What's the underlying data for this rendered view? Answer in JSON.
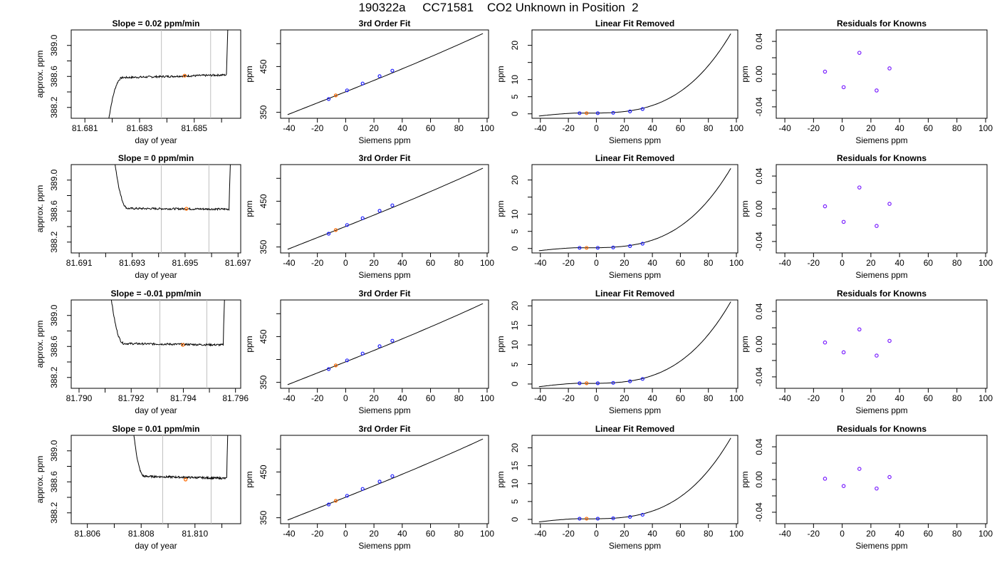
{
  "title": "190322a     CC71581    CO2 Unknown in Position  2",
  "colors": {
    "line": "#000000",
    "known": "#2020ff",
    "unknown": "#ff6a00",
    "residual": "#7a1fff",
    "vline": "#bfbfbf"
  },
  "chart_data": [
    {
      "type": "line",
      "row": 0,
      "title": "Slope =  0.02  ppm/min",
      "xlabel": "day of year",
      "ylabel": "approx. ppm",
      "xlim": [
        81.6805,
        81.6867
      ],
      "ylim": [
        388.06,
        389.2
      ],
      "xticks": [
        "81.681",
        "81.683",
        "81.685"
      ],
      "xtick_values": [
        81.681,
        81.683,
        81.685
      ],
      "yticks": [
        "388.2",
        "388.6",
        "389.0"
      ],
      "ytick_values": [
        388.2,
        388.6,
        389.0
      ],
      "vlines": [
        81.6838,
        81.6856
      ],
      "marker": {
        "x": 81.68465,
        "y": 388.61
      },
      "profile": {
        "x_start": 81.68187,
        "x_end": 81.68618,
        "base": 388.6,
        "trend": 0.04,
        "ramp_start": 388.06,
        "ramp_end": 389.25
      }
    },
    {
      "type": "line",
      "row": 1,
      "title": "Slope =  0  ppm/min",
      "xlabel": "day of year",
      "ylabel": "approx. ppm",
      "xlim": [
        81.6907,
        81.6971
      ],
      "ylim": [
        388.06,
        389.2
      ],
      "xticks": [
        "81.691",
        "81.693",
        "81.695",
        "81.697"
      ],
      "xtick_values": [
        81.691,
        81.693,
        81.695,
        81.697
      ],
      "yticks": [
        "388.2",
        "388.6",
        "389.0"
      ],
      "ytick_values": [
        388.2,
        388.6,
        389.0
      ],
      "vlines": [
        81.6941,
        81.6959
      ],
      "marker": {
        "x": 81.69505,
        "y": 388.63
      },
      "profile": {
        "x_start": 81.69234,
        "x_end": 81.69666,
        "base": 388.63,
        "trend": -0.01,
        "ramp_start": 389.25,
        "ramp_end": 389.25
      }
    },
    {
      "type": "line",
      "row": 2,
      "title": "Slope =  -0.01  ppm/min",
      "xlabel": "day of year",
      "ylabel": "approx. ppm",
      "xlim": [
        81.7897,
        81.7962
      ],
      "ylim": [
        388.06,
        389.2
      ],
      "xticks": [
        "81.790",
        "81.792",
        "81.794",
        "81.796"
      ],
      "xtick_values": [
        81.79,
        81.792,
        81.794,
        81.796
      ],
      "yticks": [
        "388.2",
        "388.6",
        "389.0"
      ],
      "ytick_values": [
        388.2,
        388.6,
        389.0
      ],
      "vlines": [
        81.7931,
        81.7949
      ],
      "marker": {
        "x": 81.79398,
        "y": 388.62
      },
      "profile": {
        "x_start": 81.79122,
        "x_end": 81.79553,
        "base": 388.63,
        "trend": -0.02,
        "ramp_start": 389.25,
        "ramp_end": 389.25
      }
    },
    {
      "type": "line",
      "row": 3,
      "title": "Slope =  0.01  ppm/min",
      "xlabel": "day of year",
      "ylabel": "approx. ppm",
      "xlim": [
        81.8054,
        81.8117
      ],
      "ylim": [
        388.06,
        389.2
      ],
      "xticks": [
        "81.806",
        "81.808",
        "81.810"
      ],
      "xtick_values": [
        81.806,
        81.808,
        81.81
      ],
      "yticks": [
        "388.2",
        "388.6",
        "389.0"
      ],
      "ytick_values": [
        388.2,
        388.6,
        389.0
      ],
      "vlines": [
        81.8088,
        81.8106
      ],
      "marker": {
        "x": 81.80965,
        "y": 388.63
      },
      "profile": {
        "x_start": 81.80771,
        "x_end": 81.81118,
        "base": 388.66,
        "trend": -0.03,
        "ramp_start": 389.25,
        "ramp_end": 389.25
      }
    },
    {
      "type": "line",
      "row": 0,
      "title": "3rd Order Fit",
      "xlabel": "Siemens ppm",
      "ylabel": "ppm",
      "xlim": [
        -46,
        101
      ],
      "ylim": [
        337,
        530
      ],
      "xticks": [
        "-40",
        "-20",
        "0",
        "20",
        "40",
        "60",
        "80",
        "100"
      ],
      "xtick_values": [
        -40,
        -20,
        0,
        20,
        40,
        60,
        80,
        100
      ],
      "yticks": [
        "350",
        "450"
      ],
      "ytick_values": [
        350,
        450
      ],
      "yminor": [
        400,
        500
      ],
      "curve": {
        "x_start": -41,
        "x_end": 97,
        "y_start": 345,
        "y_end": 522
      },
      "knowns": [
        [
          -12,
          379
        ],
        [
          1,
          398
        ],
        [
          12,
          413
        ],
        [
          24,
          429
        ],
        [
          33,
          441
        ]
      ],
      "unknowns": [
        [
          -7,
          387
        ]
      ]
    },
    {
      "type": "line",
      "row": 1,
      "title": "3rd Order Fit",
      "xlabel": "Siemens ppm",
      "ylabel": "ppm",
      "xlim": [
        -46,
        101
      ],
      "ylim": [
        337,
        530
      ],
      "xticks": [
        "-40",
        "-20",
        "0",
        "20",
        "40",
        "60",
        "80",
        "100"
      ],
      "xtick_values": [
        -40,
        -20,
        0,
        20,
        40,
        60,
        80,
        100
      ],
      "yticks": [
        "350",
        "450"
      ],
      "ytick_values": [
        350,
        450
      ],
      "yminor": [
        400,
        500
      ],
      "curve": {
        "x_start": -41,
        "x_end": 97,
        "y_start": 345,
        "y_end": 522
      },
      "knowns": [
        [
          -12,
          379
        ],
        [
          1,
          398
        ],
        [
          12,
          413
        ],
        [
          24,
          429
        ],
        [
          33,
          441
        ]
      ],
      "unknowns": [
        [
          -7,
          387
        ]
      ]
    },
    {
      "type": "line",
      "row": 2,
      "title": "3rd Order Fit",
      "xlabel": "Siemens ppm",
      "ylabel": "ppm",
      "xlim": [
        -46,
        101
      ],
      "ylim": [
        337,
        530
      ],
      "xticks": [
        "-40",
        "-20",
        "0",
        "20",
        "40",
        "60",
        "80",
        "100"
      ],
      "xtick_values": [
        -40,
        -20,
        0,
        20,
        40,
        60,
        80,
        100
      ],
      "yticks": [
        "350",
        "450"
      ],
      "ytick_values": [
        350,
        450
      ],
      "yminor": [
        400,
        500
      ],
      "curve": {
        "x_start": -41,
        "x_end": 97,
        "y_start": 345,
        "y_end": 522
      },
      "knowns": [
        [
          -12,
          379
        ],
        [
          1,
          398
        ],
        [
          12,
          413
        ],
        [
          24,
          429
        ],
        [
          33,
          441
        ]
      ],
      "unknowns": [
        [
          -7,
          387
        ]
      ]
    },
    {
      "type": "line",
      "row": 3,
      "title": "3rd Order Fit",
      "xlabel": "Siemens ppm",
      "ylabel": "ppm",
      "xlim": [
        -46,
        101
      ],
      "ylim": [
        337,
        530
      ],
      "xticks": [
        "-40",
        "-20",
        "0",
        "20",
        "40",
        "60",
        "80",
        "100"
      ],
      "xtick_values": [
        -40,
        -20,
        0,
        20,
        40,
        60,
        80,
        100
      ],
      "yticks": [
        "350",
        "450"
      ],
      "ytick_values": [
        350,
        450
      ],
      "yminor": [
        400,
        500
      ],
      "curve": {
        "x_start": -41,
        "x_end": 97,
        "y_start": 345,
        "y_end": 522
      },
      "knowns": [
        [
          -12,
          379
        ],
        [
          1,
          398
        ],
        [
          12,
          413
        ],
        [
          24,
          429
        ],
        [
          33,
          441
        ]
      ],
      "unknowns": [
        [
          -7,
          387
        ]
      ]
    },
    {
      "type": "line",
      "row": 0,
      "title": "Linear Fit Removed",
      "xlabel": "Siemens ppm",
      "ylabel": "ppm",
      "xlim": [
        -46,
        101
      ],
      "ylim": [
        -1.3,
        24.5
      ],
      "xticks": [
        "-40",
        "-20",
        "0",
        "20",
        "40",
        "60",
        "80",
        "100"
      ],
      "xtick_values": [
        -40,
        -20,
        0,
        20,
        40,
        60,
        80,
        100
      ],
      "yticks": [
        "0",
        "5",
        "10",
        "20"
      ],
      "ytick_values": [
        0,
        5,
        10,
        20
      ],
      "yminor": [
        15
      ],
      "cubic": {
        "a": 0.00021,
        "c": 0,
        "x0": 0,
        "x_start": -41,
        "x_end": 96,
        "offset": 0.25,
        "scale": 23.2
      },
      "knowns": [
        [
          -12,
          0.2
        ],
        [
          1,
          0.2
        ],
        [
          12,
          0.3
        ],
        [
          24,
          0.7
        ],
        [
          33,
          1.4
        ]
      ],
      "unknowns": [
        [
          -7,
          0.2
        ]
      ]
    },
    {
      "type": "line",
      "row": 1,
      "title": "Linear Fit Removed",
      "xlabel": "Siemens ppm",
      "ylabel": "ppm",
      "xlim": [
        -46,
        101
      ],
      "ylim": [
        -1.3,
        24.5
      ],
      "xticks": [
        "-40",
        "-20",
        "0",
        "20",
        "40",
        "60",
        "80",
        "100"
      ],
      "xtick_values": [
        -40,
        -20,
        0,
        20,
        40,
        60,
        80,
        100
      ],
      "yticks": [
        "0",
        "5",
        "10",
        "20"
      ],
      "ytick_values": [
        0,
        5,
        10,
        20
      ],
      "yminor": [
        15
      ],
      "cubic": {
        "a": 0.00021,
        "c": 0,
        "x0": 0,
        "x_start": -41,
        "x_end": 96,
        "offset": 0.25,
        "scale": 23.2
      },
      "knowns": [
        [
          -12,
          0.2
        ],
        [
          1,
          0.2
        ],
        [
          12,
          0.3
        ],
        [
          24,
          0.7
        ],
        [
          33,
          1.4
        ]
      ],
      "unknowns": [
        [
          -7,
          0.2
        ]
      ]
    },
    {
      "type": "line",
      "row": 2,
      "title": "Linear Fit Removed",
      "xlabel": "Siemens ppm",
      "ylabel": "ppm",
      "xlim": [
        -46,
        101
      ],
      "ylim": [
        -1.1,
        21.5
      ],
      "xticks": [
        "-40",
        "-20",
        "0",
        "20",
        "40",
        "60",
        "80",
        "100"
      ],
      "xtick_values": [
        -40,
        -20,
        0,
        20,
        40,
        60,
        80,
        100
      ],
      "yticks": [
        "0",
        "5",
        "10",
        "15",
        "20"
      ],
      "ytick_values": [
        0,
        5,
        10,
        15,
        20
      ],
      "yminor": [],
      "cubic": {
        "a": 0.00019,
        "c": 0,
        "x0": 0,
        "x_start": -41,
        "x_end": 96,
        "offset": 0.2,
        "scale": 20.9
      },
      "knowns": [
        [
          -12,
          0.2
        ],
        [
          1,
          0.2
        ],
        [
          12,
          0.3
        ],
        [
          24,
          0.7
        ],
        [
          33,
          1.3
        ]
      ],
      "unknowns": [
        [
          -7,
          0.2
        ]
      ]
    },
    {
      "type": "line",
      "row": 3,
      "title": "Linear Fit Removed",
      "xlabel": "Siemens ppm",
      "ylabel": "ppm",
      "xlim": [
        -46,
        101
      ],
      "ylim": [
        -1.2,
        23.5
      ],
      "xticks": [
        "-40",
        "-20",
        "0",
        "20",
        "40",
        "60",
        "80",
        "100"
      ],
      "xtick_values": [
        -40,
        -20,
        0,
        20,
        40,
        60,
        80,
        100
      ],
      "yticks": [
        "0",
        "5",
        "10",
        "15",
        "20"
      ],
      "ytick_values": [
        0,
        5,
        10,
        15,
        20
      ],
      "yminor": [],
      "cubic": {
        "a": 0.0002,
        "c": 0,
        "x0": 0,
        "x_start": -41,
        "x_end": 96,
        "offset": 0.2,
        "scale": 22.6
      },
      "knowns": [
        [
          -12,
          0.2
        ],
        [
          1,
          0.2
        ],
        [
          12,
          0.3
        ],
        [
          24,
          0.7
        ],
        [
          33,
          1.3
        ]
      ],
      "unknowns": [
        [
          -7,
          0.2
        ]
      ]
    },
    {
      "type": "scatter",
      "row": 0,
      "title": "Residuals for Knowns",
      "xlabel": "Siemens ppm",
      "ylabel": "ppm",
      "xlim": [
        -46,
        101
      ],
      "ylim": [
        -0.054,
        0.054
      ],
      "xticks": [
        "-40",
        "-20",
        "0",
        "20",
        "40",
        "60",
        "80",
        "100"
      ],
      "xtick_values": [
        -40,
        -20,
        0,
        20,
        40,
        60,
        80,
        100
      ],
      "yticks": [
        "-0.04",
        "0.00",
        "0.04"
      ],
      "ytick_values": [
        -0.04,
        0.0,
        0.04
      ],
      "yminor": [
        -0.02,
        0.02
      ],
      "points": [
        [
          -12,
          0.003
        ],
        [
          1,
          -0.016
        ],
        [
          12,
          0.026
        ],
        [
          24,
          -0.02
        ],
        [
          33,
          0.007
        ]
      ]
    },
    {
      "type": "scatter",
      "row": 1,
      "title": "Residuals for Knowns",
      "xlabel": "Siemens ppm",
      "ylabel": "ppm",
      "xlim": [
        -46,
        101
      ],
      "ylim": [
        -0.054,
        0.054
      ],
      "xticks": [
        "-40",
        "-20",
        "0",
        "20",
        "40",
        "60",
        "80",
        "100"
      ],
      "xtick_values": [
        -40,
        -20,
        0,
        20,
        40,
        60,
        80,
        100
      ],
      "yticks": [
        "-0.04",
        "0.00",
        "0.04"
      ],
      "ytick_values": [
        -0.04,
        0.0,
        0.04
      ],
      "yminor": [
        -0.02,
        0.02
      ],
      "points": [
        [
          -12,
          0.003
        ],
        [
          1,
          -0.016
        ],
        [
          12,
          0.026
        ],
        [
          24,
          -0.021
        ],
        [
          33,
          0.006
        ]
      ]
    },
    {
      "type": "scatter",
      "row": 2,
      "title": "Residuals for Knowns",
      "xlabel": "Siemens ppm",
      "ylabel": "ppm",
      "xlim": [
        -46,
        101
      ],
      "ylim": [
        -0.054,
        0.054
      ],
      "xticks": [
        "-40",
        "-20",
        "0",
        "20",
        "40",
        "60",
        "80",
        "100"
      ],
      "xtick_values": [
        -40,
        -20,
        0,
        20,
        40,
        60,
        80,
        100
      ],
      "yticks": [
        "-0.04",
        "0.00",
        "0.04"
      ],
      "ytick_values": [
        -0.04,
        0.0,
        0.04
      ],
      "yminor": [
        -0.02,
        0.02
      ],
      "points": [
        [
          -12,
          0.002
        ],
        [
          1,
          -0.01
        ],
        [
          12,
          0.018
        ],
        [
          24,
          -0.014
        ],
        [
          33,
          0.004
        ]
      ]
    },
    {
      "type": "scatter",
      "row": 3,
      "title": "Residuals for Knowns",
      "xlabel": "Siemens ppm",
      "ylabel": "ppm",
      "xlim": [
        -46,
        101
      ],
      "ylim": [
        -0.054,
        0.054
      ],
      "xticks": [
        "-40",
        "-20",
        "0",
        "20",
        "40",
        "60",
        "80",
        "100"
      ],
      "xtick_values": [
        -40,
        -20,
        0,
        20,
        40,
        60,
        80,
        100
      ],
      "yticks": [
        "-0.04",
        "0.00",
        "0.04"
      ],
      "ytick_values": [
        -0.04,
        0.0,
        0.04
      ],
      "yminor": [
        -0.02,
        0.02
      ],
      "points": [
        [
          -12,
          0.001
        ],
        [
          1,
          -0.008
        ],
        [
          12,
          0.013
        ],
        [
          24,
          -0.011
        ],
        [
          33,
          0.003
        ]
      ]
    }
  ]
}
